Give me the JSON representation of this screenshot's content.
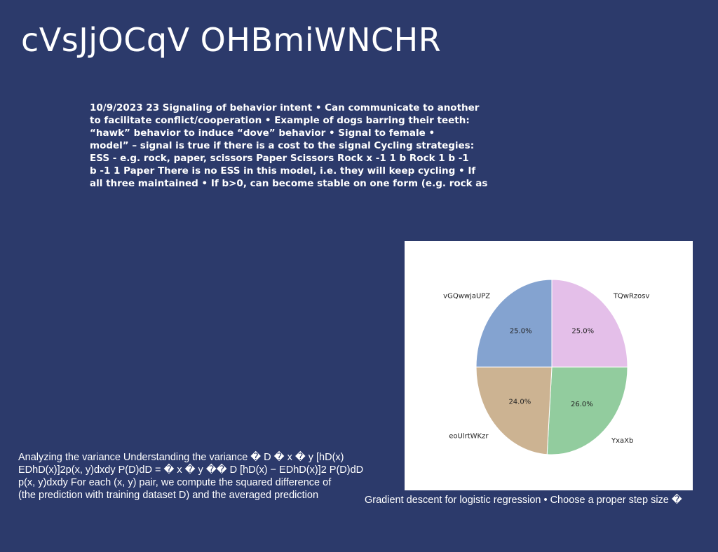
{
  "slide": {
    "title": "cVsJjOCqV OHBmiWNCHR",
    "body_lines": [
      "10/9/2023 23 Signaling of behavior intent • Can communicate to another",
      "to facilitate conflict/cooperation • Example of dogs barring their teeth:",
      "“hawk” behavior to induce “dove” behavior • Signal to female •",
      "model” – signal is true if there is a cost to the signal Cycling strategies:",
      "ESS - e.g. rock, paper, scissors Paper Scissors Rock x -1 1 b Rock 1 b -1",
      "b -1 1 Paper There is no ESS in this model, i.e. they will keep cycling • If",
      "all three maintained • If b>0, can become stable on one form (e.g. rock as"
    ],
    "lower_text_lines": [
      "Analyzing the variance Understanding the variance � D � x � y [hD(x)",
      "EDhD(x)]2p(x, y)dxdy P(D)dD = � x � y �� D [hD(x) − EDhD(x)]2 P(D)dD",
      "p(x, y)dxdy For each (x, y) pair, we compute the squared difference of",
      "(the prediction with training dataset D) and the averaged prediction"
    ],
    "caption": "Gradient descent for logistic regression • Choose a proper step size �"
  },
  "chart_data": {
    "type": "pie",
    "title": "",
    "start_angle_deg": 90,
    "direction": "clockwise",
    "slices": [
      {
        "label": "TQwRzosv",
        "value": 25.0,
        "pct_label": "25.0%",
        "color": "#e4bfe9"
      },
      {
        "label": "YxaXb",
        "value": 26.0,
        "pct_label": "26.0%",
        "color": "#92cc9e"
      },
      {
        "label": "eoUlrtWKzr",
        "value": 24.0,
        "pct_label": "24.0%",
        "color": "#ccb392"
      },
      {
        "label": "vGQwwjaUPZ",
        "value": 25.0,
        "pct_label": "25.0%",
        "color": "#84a3d0"
      }
    ]
  }
}
